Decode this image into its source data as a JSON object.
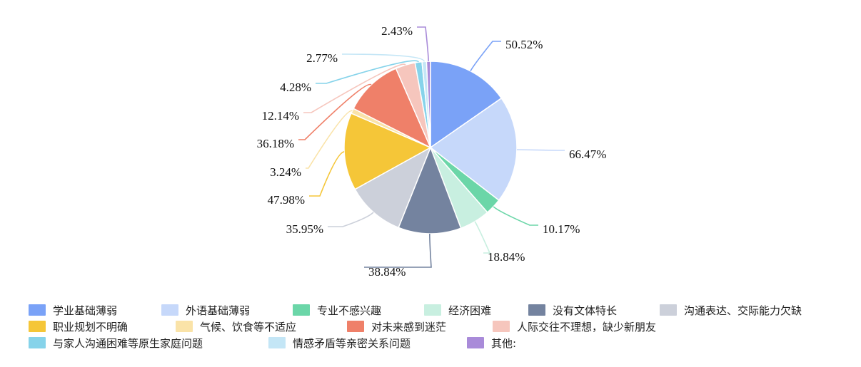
{
  "chart_data": {
    "type": "pie",
    "series": [
      {
        "name": "学业基础薄弱",
        "label": "50.52%",
        "value": 50.52,
        "color": "#7aa2f7"
      },
      {
        "name": "外语基础薄弱",
        "label": "66.47%",
        "value": 66.47,
        "color": "#c6d8fa"
      },
      {
        "name": "专业不感兴趣",
        "label": "10.17%",
        "value": 10.17,
        "color": "#6bd6a8"
      },
      {
        "name": "经济困难",
        "label": "18.84%",
        "value": 18.84,
        "color": "#c8efe0"
      },
      {
        "name": "没有文体特长",
        "label": "38.84%",
        "value": 38.84,
        "color": "#74839f"
      },
      {
        "name": "沟通表达、交际能力欠缺",
        "label": "35.95%",
        "value": 35.95,
        "color": "#ccd0da"
      },
      {
        "name": "职业规划不明确",
        "label": "47.98%",
        "value": 47.98,
        "color": "#f5c638"
      },
      {
        "name": "气候、饮食等不适应",
        "label": "3.24%",
        "value": 3.24,
        "color": "#fae3a8"
      },
      {
        "name": "对未来感到迷茫",
        "label": "36.18%",
        "value": 36.18,
        "color": "#ef8069"
      },
      {
        "name": "人际交往不理想，缺少新朋友",
        "label": "12.14%",
        "value": 12.14,
        "color": "#f6c6bd"
      },
      {
        "name": "与家人沟通困难等原生家庭问题",
        "label": "4.28%",
        "value": 4.28,
        "color": "#86d3ea"
      },
      {
        "name": "情感矛盾等亲密关系问题",
        "label": "2.77%",
        "value": 2.77,
        "color": "#c4e6f6"
      },
      {
        "name": "其他:",
        "label": "2.43%",
        "value": 2.43,
        "color": "#a98bd9"
      }
    ],
    "legend_position": "bottom"
  }
}
